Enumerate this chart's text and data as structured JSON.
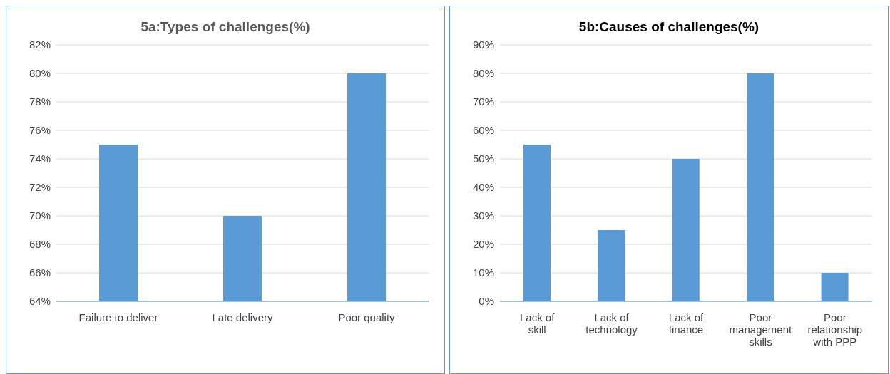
{
  "chart_data": [
    {
      "type": "bar",
      "title": "5a:Types of challenges(%)",
      "categories": [
        "Failure to deliver",
        "Late delivery",
        "Poor quality"
      ],
      "values": [
        75,
        70,
        80
      ],
      "color": "#5b9bd5",
      "ylim": [
        64,
        82
      ],
      "yticks": [
        {
          "value": 64,
          "label": "64%"
        },
        {
          "value": 66,
          "label": "66%"
        },
        {
          "value": 68,
          "label": "68%"
        },
        {
          "value": 70,
          "label": "70%"
        },
        {
          "value": 72,
          "label": "72%"
        },
        {
          "value": 74,
          "label": "74%"
        },
        {
          "value": 76,
          "label": "76%"
        },
        {
          "value": 78,
          "label": "78%"
        },
        {
          "value": 80,
          "label": "80%"
        },
        {
          "value": 82,
          "label": "82%"
        }
      ],
      "grid": "y"
    },
    {
      "type": "bar",
      "title": "5b:Causes of challenges(%)",
      "categories": [
        "Lack  of skill",
        "Lack of technology",
        "Lack of finance",
        "Poor management skills",
        "Poor relationship with PPP"
      ],
      "values": [
        55,
        25,
        50,
        80,
        10
      ],
      "color": "#5b9bd5",
      "ylim": [
        0,
        90
      ],
      "yticks": [
        {
          "value": 0,
          "label": "0%"
        },
        {
          "value": 10,
          "label": "10%"
        },
        {
          "value": 20,
          "label": "20%"
        },
        {
          "value": 30,
          "label": "30%"
        },
        {
          "value": 40,
          "label": "40%"
        },
        {
          "value": 50,
          "label": "50%"
        },
        {
          "value": 60,
          "label": "60%"
        },
        {
          "value": 70,
          "label": "70%"
        },
        {
          "value": 80,
          "label": "80%"
        },
        {
          "value": 90,
          "label": "90%"
        }
      ],
      "grid": "y"
    }
  ]
}
